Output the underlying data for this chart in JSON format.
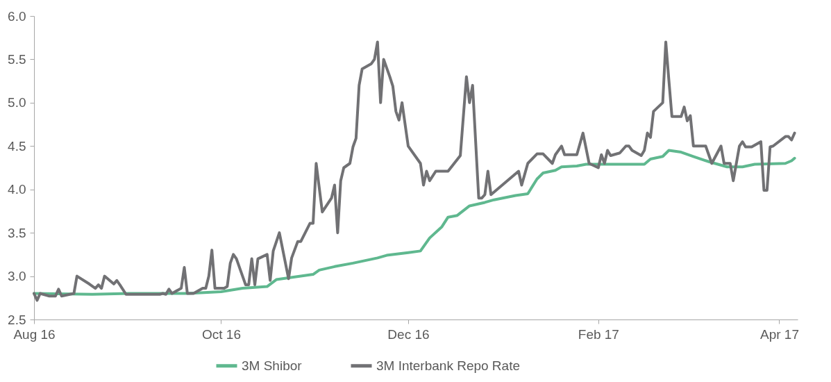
{
  "chart_data": {
    "type": "line",
    "xlim": [
      "2016-08-01",
      "2017-04-07"
    ],
    "xticks": [
      {
        "value": "2016-08-01",
        "label": "Aug 16"
      },
      {
        "value": "2016-10-01",
        "label": "Oct 16"
      },
      {
        "value": "2016-12-01",
        "label": "Dec 16"
      },
      {
        "value": "2017-02-01",
        "label": "Feb 17"
      },
      {
        "value": "2017-04-01",
        "label": "Apr 17"
      }
    ],
    "ylim": [
      2.5,
      6
    ],
    "yticks": [
      {
        "value": 2.5,
        "label": "2.5"
      },
      {
        "value": 3,
        "label": "3.0"
      },
      {
        "value": 3.5,
        "label": "3.5"
      },
      {
        "value": 4,
        "label": "4.0"
      },
      {
        "value": 4.5,
        "label": "4.5"
      },
      {
        "value": 5,
        "label": "5.0"
      },
      {
        "value": 5.5,
        "label": "5.5"
      },
      {
        "value": 6,
        "label": "6.0"
      }
    ],
    "grid": false,
    "legend": "bottom",
    "marker": "none",
    "line_style": "solid",
    "series": [
      {
        "name": "3M Shibor",
        "color": "#5fb88f",
        "x": [
          "2016-08-01",
          "2016-08-20",
          "2016-09-01",
          "2016-09-20",
          "2016-10-01",
          "2016-10-08",
          "2016-10-16",
          "2016-10-19",
          "2016-10-27",
          "2016-10-31",
          "2016-11-02",
          "2016-11-07",
          "2016-11-13",
          "2016-11-21",
          "2016-11-24",
          "2016-12-01",
          "2016-12-05",
          "2016-12-08",
          "2016-12-12",
          "2016-12-14",
          "2016-12-17",
          "2016-12-21",
          "2016-12-26",
          "2016-12-29",
          "2017-01-05",
          "2017-01-09",
          "2017-01-12",
          "2017-01-14",
          "2017-01-18",
          "2017-01-20",
          "2017-01-25",
          "2017-01-28",
          "2017-02-05",
          "2017-02-16",
          "2017-02-18",
          "2017-02-22",
          "2017-02-24",
          "2017-02-28",
          "2017-03-04",
          "2017-03-09",
          "2017-03-15",
          "2017-03-20",
          "2017-03-24",
          "2017-04-03",
          "2017-04-05",
          "2017-04-06"
        ],
        "values": [
          2.8,
          2.79,
          2.8,
          2.8,
          2.82,
          2.86,
          2.88,
          2.96,
          3.0,
          3.02,
          3.07,
          3.11,
          3.15,
          3.21,
          3.24,
          3.27,
          3.29,
          3.44,
          3.57,
          3.68,
          3.7,
          3.81,
          3.85,
          3.88,
          3.93,
          3.95,
          4.12,
          4.19,
          4.22,
          4.26,
          4.27,
          4.29,
          4.29,
          4.29,
          4.35,
          4.38,
          4.45,
          4.43,
          4.38,
          4.32,
          4.26,
          4.26,
          4.29,
          4.3,
          4.33,
          4.36
        ]
      },
      {
        "name": "3M Interbank Repo Rate",
        "color": "#717174",
        "x": [
          "2016-08-01",
          "2016-08-02",
          "2016-08-03",
          "2016-08-06",
          "2016-08-08",
          "2016-08-09",
          "2016-08-10",
          "2016-08-14",
          "2016-08-15",
          "2016-08-19",
          "2016-08-21",
          "2016-08-22",
          "2016-08-23",
          "2016-08-24",
          "2016-08-27",
          "2016-08-28",
          "2016-08-29",
          "2016-08-31",
          "2016-09-11",
          "2016-09-12",
          "2016-09-13",
          "2016-09-14",
          "2016-09-15",
          "2016-09-18",
          "2016-09-19",
          "2016-09-20",
          "2016-09-22",
          "2016-09-25",
          "2016-09-26",
          "2016-09-27",
          "2016-09-28",
          "2016-09-29",
          "2016-10-02",
          "2016-10-03",
          "2016-10-04",
          "2016-10-05",
          "2016-10-06",
          "2016-10-09",
          "2016-10-10",
          "2016-10-11",
          "2016-10-12",
          "2016-10-13",
          "2016-10-16",
          "2016-10-17",
          "2016-10-18",
          "2016-10-20",
          "2016-10-23",
          "2016-10-24",
          "2016-10-26",
          "2016-10-27",
          "2016-10-30",
          "2016-10-31",
          "2016-11-01",
          "2016-11-03",
          "2016-11-06",
          "2016-11-07",
          "2016-11-08",
          "2016-11-09",
          "2016-11-10",
          "2016-11-12",
          "2016-11-13",
          "2016-11-14",
          "2016-11-15",
          "2016-11-16",
          "2016-11-19",
          "2016-11-20",
          "2016-11-21",
          "2016-11-22",
          "2016-11-23",
          "2016-11-25",
          "2016-11-26",
          "2016-11-27",
          "2016-11-28",
          "2016-11-29",
          "2016-12-01",
          "2016-12-05",
          "2016-12-06",
          "2016-12-07",
          "2016-12-08",
          "2016-12-10",
          "2016-12-14",
          "2016-12-18",
          "2016-12-20",
          "2016-12-21",
          "2016-12-22",
          "2016-12-24",
          "2016-12-25",
          "2016-12-26",
          "2016-12-27",
          "2016-12-28",
          "2017-01-06",
          "2017-01-07",
          "2017-01-09",
          "2017-01-12",
          "2017-01-14",
          "2017-01-17",
          "2017-01-18",
          "2017-01-20",
          "2017-01-21",
          "2017-01-25",
          "2017-01-27",
          "2017-01-29",
          "2017-02-01",
          "2017-02-02",
          "2017-02-03",
          "2017-02-04",
          "2017-02-05",
          "2017-02-08",
          "2017-02-10",
          "2017-02-11",
          "2017-02-12",
          "2017-02-15",
          "2017-02-16",
          "2017-02-17",
          "2017-02-18",
          "2017-02-19",
          "2017-02-22",
          "2017-02-23",
          "2017-02-24",
          "2017-02-25",
          "2017-02-28",
          "2017-03-01",
          "2017-03-02",
          "2017-03-03",
          "2017-03-04",
          "2017-03-08",
          "2017-03-10",
          "2017-03-13",
          "2017-03-14",
          "2017-03-16",
          "2017-03-17",
          "2017-03-19",
          "2017-03-20",
          "2017-03-21",
          "2017-03-23",
          "2017-03-26",
          "2017-03-27",
          "2017-03-28",
          "2017-03-29",
          "2017-03-30",
          "2017-04-03",
          "2017-04-04",
          "2017-04-05",
          "2017-04-06"
        ],
        "values": [
          2.8,
          2.72,
          2.8,
          2.77,
          2.77,
          2.85,
          2.77,
          2.8,
          3.0,
          2.91,
          2.86,
          2.9,
          2.86,
          3.0,
          2.91,
          2.95,
          2.9,
          2.79,
          2.79,
          2.8,
          2.79,
          2.85,
          2.8,
          2.86,
          3.1,
          2.8,
          2.8,
          2.86,
          2.86,
          3.0,
          3.3,
          2.86,
          2.86,
          2.88,
          3.15,
          3.25,
          3.2,
          2.9,
          2.9,
          3.2,
          2.9,
          3.2,
          3.25,
          2.95,
          3.29,
          3.5,
          2.97,
          3.21,
          3.4,
          3.4,
          3.61,
          3.61,
          4.3,
          3.74,
          3.9,
          4.05,
          3.5,
          4.1,
          4.25,
          4.3,
          4.49,
          4.59,
          5.2,
          5.39,
          5.45,
          5.5,
          5.7,
          5.0,
          5.5,
          5.3,
          5.19,
          4.9,
          4.8,
          5.0,
          4.5,
          4.3,
          4.05,
          4.21,
          4.1,
          4.21,
          4.21,
          4.39,
          5.3,
          5.0,
          5.2,
          3.9,
          3.9,
          3.94,
          4.21,
          3.94,
          4.21,
          4.05,
          4.3,
          4.41,
          4.41,
          4.3,
          4.4,
          4.5,
          4.4,
          4.4,
          4.65,
          4.3,
          4.25,
          4.4,
          4.3,
          4.45,
          4.39,
          4.42,
          4.5,
          4.5,
          4.45,
          4.39,
          4.45,
          4.65,
          4.6,
          4.9,
          5.0,
          5.7,
          5.26,
          4.84,
          4.84,
          4.95,
          4.79,
          4.85,
          4.5,
          4.5,
          4.3,
          4.5,
          4.3,
          4.3,
          4.1,
          4.5,
          4.55,
          4.49,
          4.49,
          4.55,
          3.99,
          3.99,
          4.49,
          4.5,
          4.61,
          4.61,
          4.57,
          4.65
        ]
      }
    ]
  }
}
